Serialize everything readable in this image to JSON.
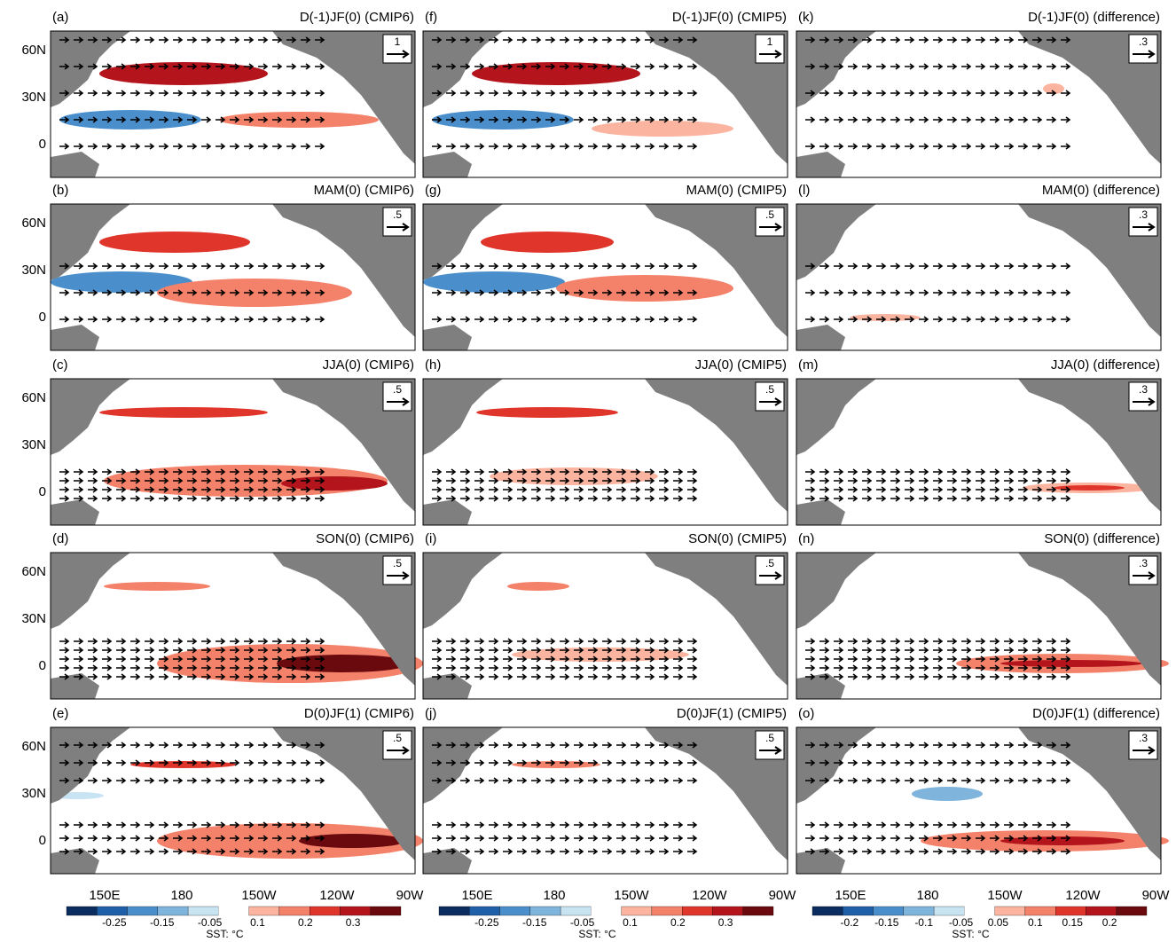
{
  "panels": [
    {
      "label": "(a)",
      "title": "D(-1)JF(0) (CMIP6)",
      "ref_vector": "1"
    },
    {
      "label": "(b)",
      "title": "MAM(0) (CMIP6)",
      "ref_vector": ".5"
    },
    {
      "label": "(c)",
      "title": "JJA(0) (CMIP6)",
      "ref_vector": ".5"
    },
    {
      "label": "(d)",
      "title": "SON(0) (CMIP6)",
      "ref_vector": ".5"
    },
    {
      "label": "(e)",
      "title": "D(0)JF(1) (CMIP6)",
      "ref_vector": ".5"
    },
    {
      "label": "(f)",
      "title": "D(-1)JF(0) (CMIP5)",
      "ref_vector": "1"
    },
    {
      "label": "(g)",
      "title": "MAM(0) (CMIP5)",
      "ref_vector": ".5"
    },
    {
      "label": "(h)",
      "title": "JJA(0) (CMIP5)",
      "ref_vector": ".5"
    },
    {
      "label": "(i)",
      "title": "SON(0) (CMIP5)",
      "ref_vector": ".5"
    },
    {
      "label": "(j)",
      "title": "D(0)JF(1) (CMIP5)",
      "ref_vector": ".5"
    },
    {
      "label": "(k)",
      "title": "D(-1)JF(0) (difference)",
      "ref_vector": ".3"
    },
    {
      "label": "(l)",
      "title": "MAM(0) (difference)",
      "ref_vector": ".3"
    },
    {
      "label": "(m)",
      "title": "JJA(0) (difference)",
      "ref_vector": ".3"
    },
    {
      "label": "(n)",
      "title": "SON(0) (difference)",
      "ref_vector": ".3"
    },
    {
      "label": "(o)",
      "title": "D(0)JF(1) (difference)",
      "ref_vector": ".3"
    }
  ],
  "y_axis_labels": [
    "60N",
    "30N",
    "0"
  ],
  "x_axis_labels": [
    "150E",
    "180",
    "150W",
    "120W",
    "90W"
  ],
  "colorbars": [
    {
      "label": "SST: °C",
      "ticks": [
        "-0.25",
        "-0.15",
        "-0.05",
        "0.1",
        "0.2",
        "0.3"
      ]
    },
    {
      "label": "SST: °C",
      "ticks": [
        "-0.25",
        "-0.15",
        "-0.05",
        "0.1",
        "0.2",
        "0.3"
      ]
    },
    {
      "label": "SST: °C",
      "ticks": [
        "-0.2",
        "-0.15",
        "-0.1",
        "-0.05",
        "0.05",
        "0.1",
        "0.15",
        "0.2"
      ]
    }
  ]
}
